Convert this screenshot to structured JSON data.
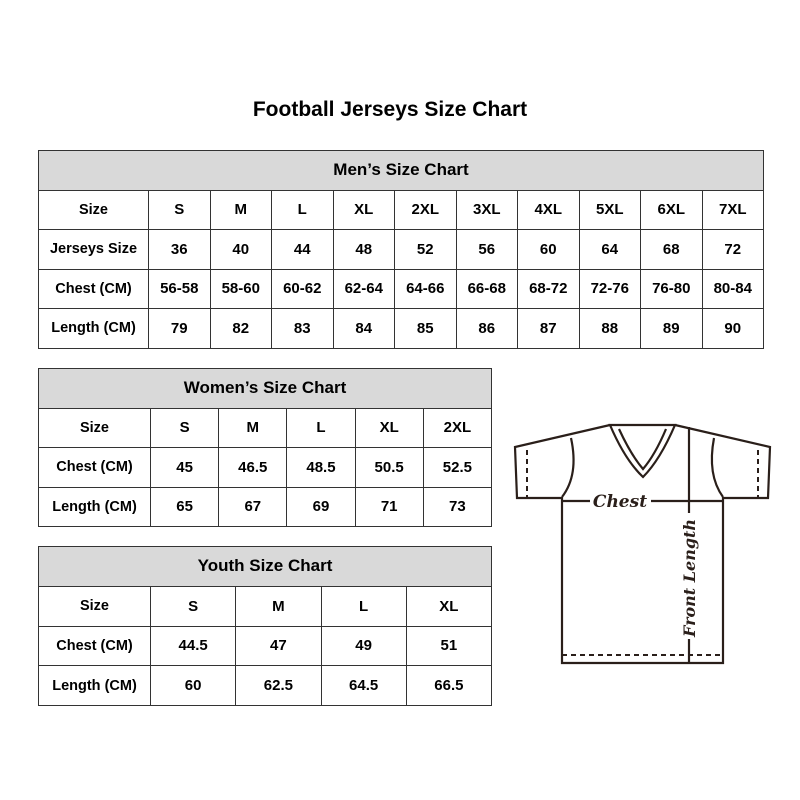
{
  "title": "Football Jerseys Size Chart",
  "men": {
    "caption": "Men’s Size Chart",
    "rows": [
      [
        "Size",
        "S",
        "M",
        "L",
        "XL",
        "2XL",
        "3XL",
        "4XL",
        "5XL",
        "6XL",
        "7XL"
      ],
      [
        "Jerseys Size",
        "36",
        "40",
        "44",
        "48",
        "52",
        "56",
        "60",
        "64",
        "68",
        "72"
      ],
      [
        "Chest (CM)",
        "56-58",
        "58-60",
        "60-62",
        "62-64",
        "64-66",
        "66-68",
        "68-72",
        "72-76",
        "76-80",
        "80-84"
      ],
      [
        "Length (CM)",
        "79",
        "82",
        "83",
        "84",
        "85",
        "86",
        "87",
        "88",
        "89",
        "90"
      ]
    ]
  },
  "women": {
    "caption": "Women’s Size Chart",
    "rows": [
      [
        "Size",
        "S",
        "M",
        "L",
        "XL",
        "2XL"
      ],
      [
        "Chest (CM)",
        "45",
        "46.5",
        "48.5",
        "50.5",
        "52.5"
      ],
      [
        "Length (CM)",
        "65",
        "67",
        "69",
        "71",
        "73"
      ]
    ]
  },
  "youth": {
    "caption": "Youth Size Chart",
    "rows": [
      [
        "Size",
        "S",
        "M",
        "L",
        "XL"
      ],
      [
        "Chest (CM)",
        "44.5",
        "47",
        "49",
        "51"
      ],
      [
        "Length (CM)",
        "60",
        "62.5",
        "64.5",
        "66.5"
      ]
    ]
  },
  "diagram": {
    "chest_label": "Chest",
    "length_label": "Front Length"
  },
  "colors": {
    "header_bg": "#d9d9d9",
    "border": "#333333"
  }
}
